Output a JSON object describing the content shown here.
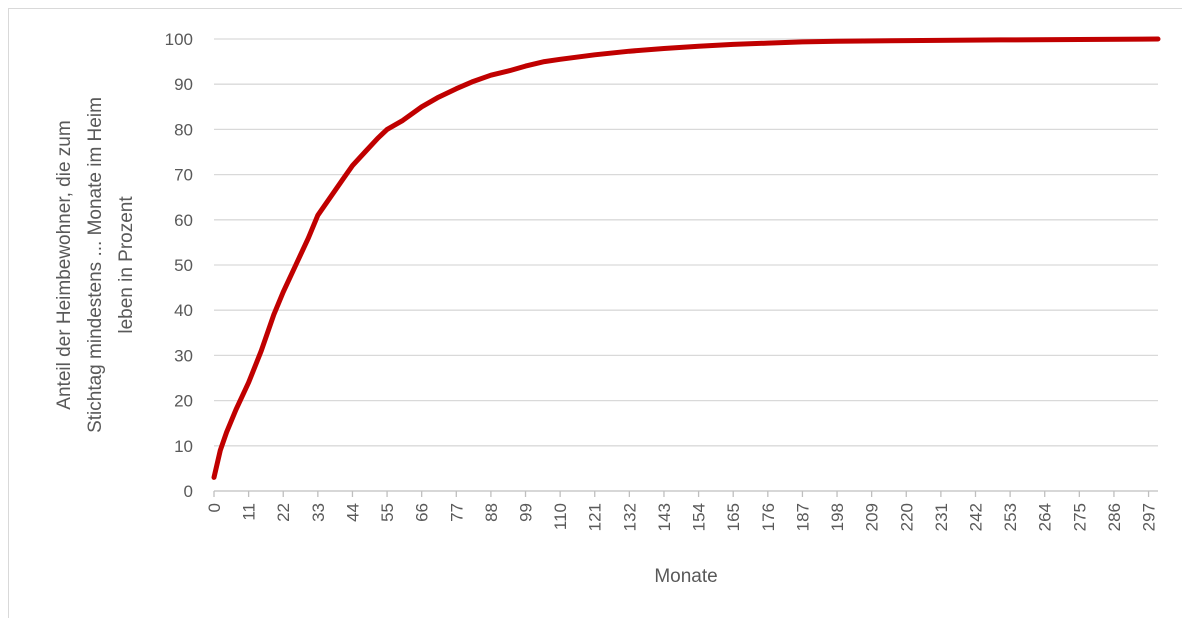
{
  "chart_data": {
    "type": "line",
    "title": "",
    "xlabel": "Monate",
    "ylabel_lines": [
      "Anteil der Heimbewohner, die zum",
      "Stichtag mindestens ... Monate im Heim",
      "leben in Prozent"
    ],
    "xlim": [
      0,
      300
    ],
    "ylim": [
      0,
      100
    ],
    "y_ticks": [
      0,
      10,
      20,
      30,
      40,
      50,
      60,
      70,
      80,
      90,
      100
    ],
    "x_ticks": [
      "0",
      "11",
      "22",
      "33",
      "44",
      "55",
      "66",
      "77",
      "88",
      "99",
      "110",
      "121",
      "132",
      "143",
      "154",
      "165",
      "176",
      "187",
      "198",
      "209",
      "220",
      "231",
      "242",
      "253",
      "264",
      "275",
      "286",
      "297"
    ],
    "grid": "horizontal",
    "legend": "none",
    "series": [
      {
        "color": "#c00000",
        "x": [
          0,
          2,
          4,
          7,
          11,
          15,
          19,
          22,
          26,
          30,
          33,
          37,
          41,
          44,
          48,
          52,
          55,
          60,
          66,
          71,
          77,
          82,
          88,
          94,
          99,
          105,
          110,
          121,
          132,
          143,
          154,
          165,
          176,
          187,
          198,
          220,
          250,
          275,
          300
        ],
        "y": [
          3,
          9,
          13,
          18,
          24,
          31,
          39,
          44,
          50,
          56,
          61,
          65,
          69,
          72,
          75,
          78,
          80,
          82,
          85,
          87,
          89,
          90.5,
          92,
          93,
          94,
          95,
          95.5,
          96.5,
          97.3,
          97.9,
          98.4,
          98.8,
          99.1,
          99.35,
          99.5,
          99.65,
          99.8,
          99.9,
          100
        ]
      }
    ]
  }
}
